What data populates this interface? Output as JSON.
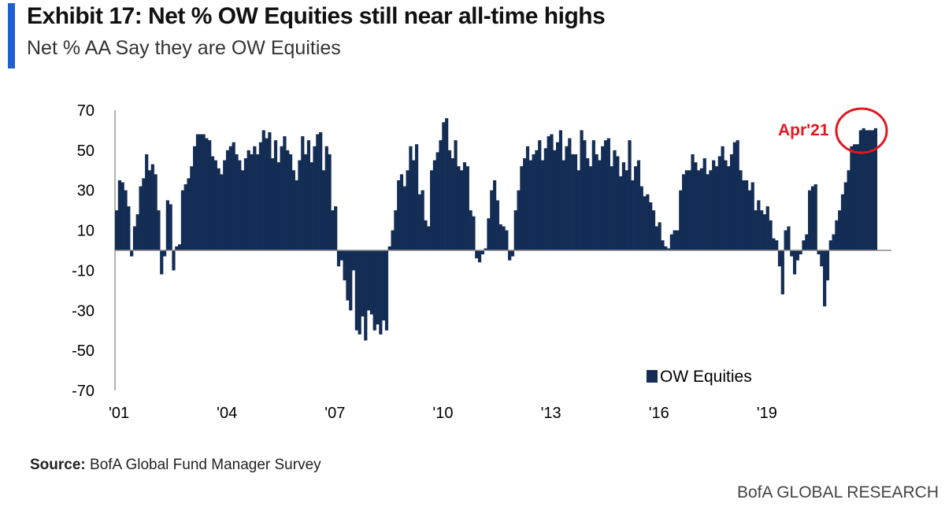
{
  "header": {
    "title": "Exhibit 17: Net % OW Equities still near all-time highs",
    "subtitle": "Net % AA Say they are OW Equities"
  },
  "footer": {
    "source_label": "Source:",
    "source_text": "BofA Global Fund Manager Survey",
    "credit": "BofA GLOBAL RESEARCH"
  },
  "colors": {
    "bar": "#132d55",
    "accent": "#1f5fd1",
    "annotation": "#e0191f"
  },
  "chart_data": {
    "type": "bar",
    "title": "Exhibit 17: Net % OW Equities still near all-time highs",
    "subtitle": "Net % AA Say they are OW Equities",
    "ylim": [
      -70,
      70
    ],
    "yticks": [
      70,
      50,
      30,
      10,
      -10,
      -30,
      -50,
      -70
    ],
    "ytick_labels": [
      "70",
      "50",
      "30",
      "10",
      "-10",
      "-30",
      "-50",
      "-70"
    ],
    "xlim": [
      2001.0,
      2022.0
    ],
    "xticks": [
      2001,
      2004,
      2007,
      2010,
      2013,
      2016,
      2019
    ],
    "xtick_labels": [
      "'01",
      "'04",
      "'07",
      "'10",
      "'13",
      "'16",
      "'19"
    ],
    "legend": {
      "label": "OW Equities",
      "position": "bottom-right"
    },
    "annotation": {
      "text": "Apr'21"
    },
    "grid": false,
    "series": [
      {
        "name": "OW Equities",
        "x_start": 2001.0,
        "step": 0.0833333,
        "values": [
          20,
          35,
          34,
          30,
          22,
          -3,
          12,
          18,
          32,
          36,
          48,
          40,
          43,
          38,
          20,
          -12,
          -3,
          25,
          23,
          -10,
          2,
          3,
          30,
          33,
          36,
          42,
          52,
          58,
          58,
          58,
          56,
          55,
          47,
          45,
          41,
          38,
          45,
          50,
          52,
          54,
          48,
          45,
          40,
          46,
          50,
          48,
          52,
          48,
          54,
          60,
          56,
          59,
          46,
          55,
          44,
          52,
          57,
          50,
          48,
          40,
          35,
          45,
          57,
          48,
          55,
          44,
          52,
          58,
          59,
          40,
          52,
          48,
          20,
          22,
          -8,
          -5,
          -15,
          -25,
          -30,
          -10,
          -40,
          -42,
          -33,
          -45,
          -30,
          -32,
          -40,
          -37,
          -42,
          -35,
          -40,
          2,
          10,
          20,
          35,
          38,
          32,
          40,
          52,
          45,
          53,
          28,
          30,
          15,
          12,
          40,
          45,
          49,
          55,
          64,
          66,
          50,
          46,
          55,
          42,
          40,
          44,
          42,
          20,
          17,
          -4,
          -6,
          -2,
          1,
          16,
          30,
          35,
          25,
          13,
          12,
          10,
          -5,
          -3,
          20,
          30,
          42,
          46,
          52,
          45,
          48,
          50,
          55,
          45,
          51,
          57,
          58,
          50,
          54,
          60,
          45,
          52,
          56,
          48,
          48,
          40,
          60,
          55,
          46,
          42,
          55,
          48,
          45,
          52,
          55,
          56,
          42,
          50,
          47,
          37,
          44,
          40,
          55,
          35,
          42,
          45,
          32,
          27,
          28,
          24,
          20,
          12,
          14,
          5,
          2,
          1,
          8,
          10,
          10,
          30,
          38,
          40,
          40,
          48,
          44,
          40,
          41,
          46,
          38,
          40,
          45,
          42,
          47,
          52,
          45,
          42,
          48,
          54,
          55,
          40,
          35,
          35,
          30,
          34,
          20,
          25,
          20,
          18,
          22,
          15,
          6,
          5,
          -8,
          -22,
          10,
          12,
          -3,
          -12,
          -5,
          -2,
          5,
          8,
          30,
          32,
          33,
          -2,
          -8,
          -28,
          -15,
          5,
          8,
          15,
          20,
          28,
          34,
          40,
          52,
          53,
          53,
          60,
          61,
          60,
          60,
          60,
          61
        ]
      }
    ]
  }
}
